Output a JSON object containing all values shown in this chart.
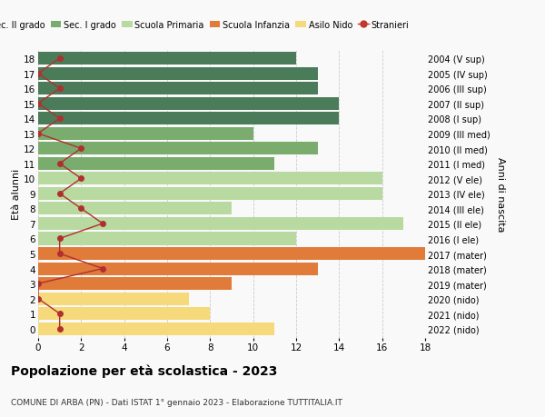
{
  "ages": [
    18,
    17,
    16,
    15,
    14,
    13,
    12,
    11,
    10,
    9,
    8,
    7,
    6,
    5,
    4,
    3,
    2,
    1,
    0
  ],
  "right_labels": [
    "2004 (V sup)",
    "2005 (IV sup)",
    "2006 (III sup)",
    "2007 (II sup)",
    "2008 (I sup)",
    "2009 (III med)",
    "2010 (II med)",
    "2011 (I med)",
    "2012 (V ele)",
    "2013 (IV ele)",
    "2014 (III ele)",
    "2015 (II ele)",
    "2016 (I ele)",
    "2017 (mater)",
    "2018 (mater)",
    "2019 (mater)",
    "2020 (nido)",
    "2021 (nido)",
    "2022 (nido)"
  ],
  "bar_values": [
    12,
    13,
    13,
    14,
    14,
    10,
    13,
    11,
    16,
    16,
    9,
    17,
    12,
    18,
    13,
    9,
    7,
    8,
    11
  ],
  "bar_colors": [
    "#4a7c59",
    "#4a7c59",
    "#4a7c59",
    "#4a7c59",
    "#4a7c59",
    "#7aac6e",
    "#7aac6e",
    "#7aac6e",
    "#b8d9a0",
    "#b8d9a0",
    "#b8d9a0",
    "#b8d9a0",
    "#b8d9a0",
    "#e07b39",
    "#e07b39",
    "#e07b39",
    "#f5d97a",
    "#f5d97a",
    "#f5d97a"
  ],
  "stranieri_values": [
    1,
    0,
    1,
    0,
    1,
    0,
    2,
    1,
    2,
    1,
    2,
    3,
    1,
    1,
    3,
    0,
    0,
    1,
    1
  ],
  "legend_labels": [
    "Sec. II grado",
    "Sec. I grado",
    "Scuola Primaria",
    "Scuola Infanzia",
    "Asilo Nido",
    "Stranieri"
  ],
  "legend_colors": [
    "#4a7c59",
    "#7aac6e",
    "#b8d9a0",
    "#e07b39",
    "#f5d97a",
    "#c0392b"
  ],
  "title": "Popolazione per età scolastica - 2023",
  "subtitle": "COMUNE DI ARBA (PN) - Dati ISTAT 1° gennaio 2023 - Elaborazione TUTTITALIA.IT",
  "ylabel": "Età alunni",
  "ylabel_right": "Anni di nascita",
  "xlim": [
    0,
    18
  ],
  "bg_color": "#f9f9f9",
  "grid_color": "#cccccc",
  "stranieri_color": "#b03030",
  "bar_height": 0.85
}
